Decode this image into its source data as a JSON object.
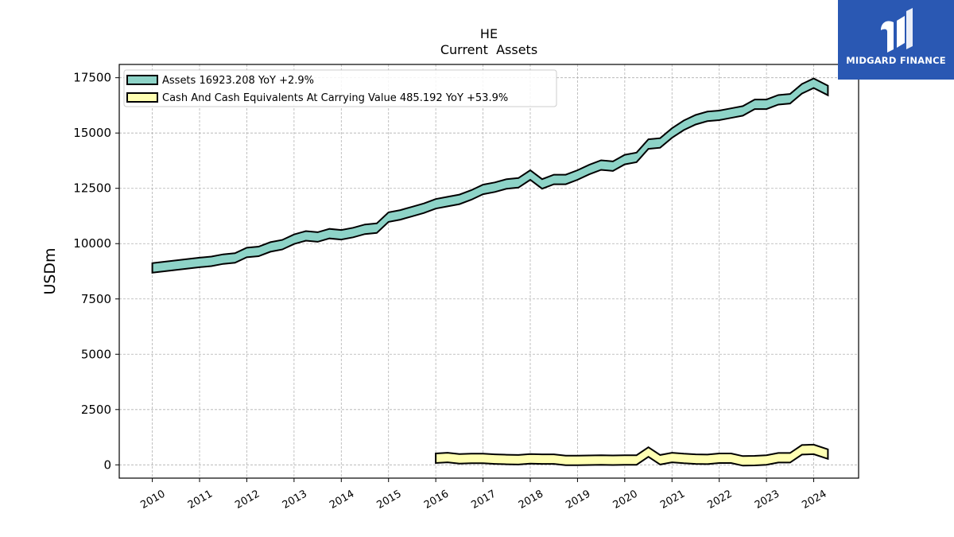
{
  "chart_data": {
    "type": "line",
    "title": "HE",
    "subtitle": "Current  Assets",
    "ylabel": "USDm",
    "xlabel": "",
    "ylim": [
      -600,
      18100
    ],
    "xlim": [
      2009.3,
      2024.95
    ],
    "yticks": [
      0,
      2500,
      5000,
      7500,
      10000,
      12500,
      15000,
      17500
    ],
    "ytick_labels": [
      "0",
      "2500",
      "5000",
      "7500",
      "10000",
      "12500",
      "15000",
      "17500"
    ],
    "xticks": [
      2010,
      2011,
      2012,
      2013,
      2014,
      2015,
      2016,
      2017,
      2018,
      2019,
      2020,
      2021,
      2022,
      2023,
      2024
    ],
    "xtick_labels": [
      "2010",
      "2011",
      "2012",
      "2013",
      "2014",
      "2015",
      "2016",
      "2017",
      "2018",
      "2019",
      "2020",
      "2021",
      "2022",
      "2023",
      "2024"
    ],
    "grid": true,
    "legend_position": "top-left",
    "series": [
      {
        "name": "Assets",
        "legend_label": "Assets  16923.208 YoY +2.9%",
        "color": "#8dd3c7",
        "x": [
          2010.0,
          2011.0,
          2011.25,
          2011.5,
          2011.75,
          2012.0,
          2012.25,
          2012.5,
          2012.75,
          2013.0,
          2013.25,
          2013.5,
          2013.75,
          2014.0,
          2014.25,
          2014.5,
          2014.75,
          2015.0,
          2015.25,
          2015.5,
          2015.75,
          2016.0,
          2016.25,
          2016.5,
          2016.75,
          2017.0,
          2017.25,
          2017.5,
          2017.75,
          2018.0,
          2018.25,
          2018.5,
          2018.75,
          2019.0,
          2019.25,
          2019.5,
          2019.75,
          2020.0,
          2020.25,
          2020.5,
          2020.75,
          2021.0,
          2021.25,
          2021.5,
          2021.75,
          2022.0,
          2022.25,
          2022.5,
          2022.75,
          2023.0,
          2023.25,
          2023.5,
          2023.75,
          2024.0,
          2024.3
        ],
        "y": [
          8900,
          9150,
          9200,
          9300,
          9350,
          9600,
          9650,
          9850,
          9950,
          10200,
          10350,
          10300,
          10450,
          10400,
          10500,
          10650,
          10700,
          11200,
          11300,
          11450,
          11600,
          11800,
          11900,
          12000,
          12200,
          12450,
          12550,
          12700,
          12750,
          13100,
          12700,
          12900,
          12900,
          13100,
          13350,
          13550,
          13500,
          13800,
          13900,
          14500,
          14550,
          15000,
          15350,
          15600,
          15750,
          15800,
          15900,
          16000,
          16300,
          16300,
          16500,
          16550,
          17000,
          17250,
          16923
        ]
      },
      {
        "name": "Cash And Cash Equivalents At Carrying Value",
        "legend_label": "Cash And Cash Equivalents At Carrying Value  485.192 YoY +53.9%",
        "color": "#ffffb3",
        "x": [
          2016.0,
          2016.25,
          2016.5,
          2016.75,
          2017.0,
          2017.25,
          2017.5,
          2017.75,
          2018.0,
          2018.25,
          2018.5,
          2018.75,
          2019.0,
          2019.25,
          2019.5,
          2019.75,
          2020.0,
          2020.25,
          2020.5,
          2020.75,
          2021.0,
          2021.25,
          2021.5,
          2021.75,
          2022.0,
          2022.25,
          2022.5,
          2022.75,
          2023.0,
          2023.25,
          2023.5,
          2023.75,
          2024.0,
          2024.3
        ],
        "y": [
          300,
          330,
          270,
          290,
          290,
          260,
          240,
          230,
          270,
          260,
          260,
          200,
          200,
          210,
          220,
          210,
          220,
          220,
          580,
          230,
          330,
          290,
          260,
          250,
          300,
          300,
          180,
          190,
          220,
          320,
          320,
          680,
          700,
          485
        ]
      }
    ]
  },
  "branding": {
    "logo_text": "MIDGARD FINANCE"
  }
}
